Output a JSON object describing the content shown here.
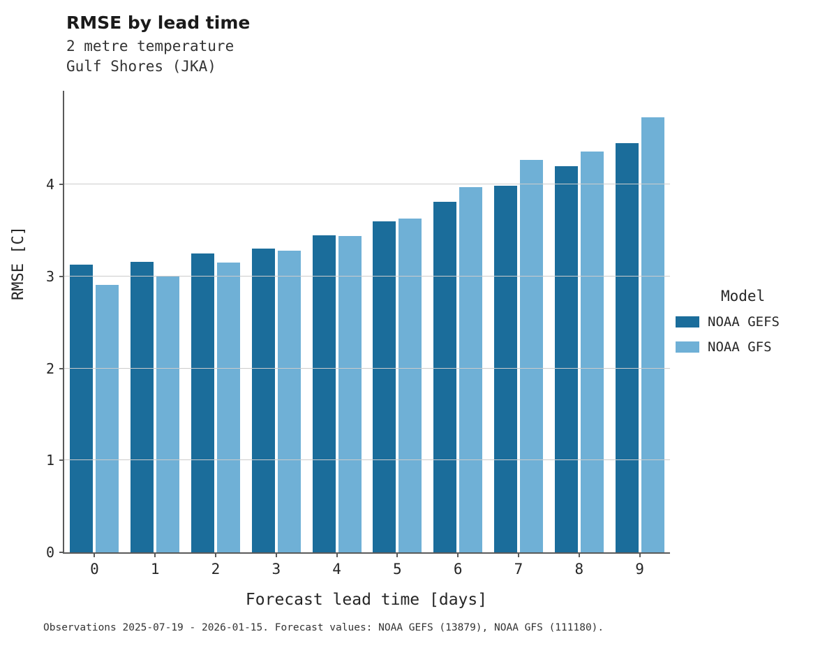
{
  "header": {
    "title": "RMSE by lead time",
    "subtitle1": "2 metre temperature",
    "subtitle2": "Gulf Shores (JKA)"
  },
  "axes": {
    "ylabel": "RMSE [C]",
    "xlabel": "Forecast lead time [days]"
  },
  "legend": {
    "title": "Model"
  },
  "caption": {
    "text": "Observations 2025-07-19 - 2026-01-15. Forecast values: NOAA GEFS (13879), NOAA GFS (111180)."
  },
  "colors": {
    "gefs": "#1b6d9b",
    "gfs": "#6fb0d6",
    "grid": "#cccccc",
    "spine": "#5a5a5a"
  },
  "chart_data": {
    "type": "bar",
    "title": "RMSE by lead time",
    "subtitle": "2 metre temperature, Gulf Shores (JKA)",
    "xlabel": "Forecast lead time [days]",
    "ylabel": "RMSE [C]",
    "categories": [
      "0",
      "1",
      "2",
      "3",
      "4",
      "5",
      "6",
      "7",
      "8",
      "9"
    ],
    "series": [
      {
        "name": "NOAA GEFS",
        "color": "#1b6d9b",
        "values": [
          3.13,
          3.16,
          3.25,
          3.3,
          3.45,
          3.6,
          3.81,
          3.99,
          4.2,
          4.45
        ]
      },
      {
        "name": "NOAA GFS",
        "color": "#6fb0d6",
        "values": [
          2.91,
          3.01,
          3.15,
          3.28,
          3.44,
          3.63,
          3.97,
          4.27,
          4.36,
          4.73
        ]
      }
    ],
    "yticks": [
      0,
      1,
      2,
      3,
      4
    ],
    "ylim": [
      0,
      5.02
    ],
    "grid": "horizontal",
    "legend_position": "right",
    "legend_title": "Model",
    "note": "Observations 2025-07-19 - 2026-01-15. Forecast values: NOAA GEFS (13879), NOAA GFS (111180)."
  }
}
